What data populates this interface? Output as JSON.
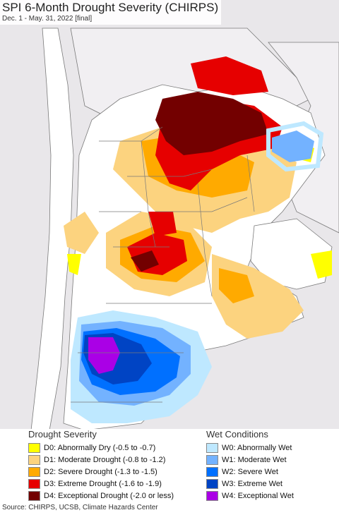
{
  "header": {
    "title": "SPI 6-Month Drought Severity (CHIRPS)",
    "subtitle": "Dec. 1 - May. 31, 2022 [final]"
  },
  "legend": {
    "drought": {
      "heading": "Drought Severity",
      "items": [
        {
          "label": "D0: Abnormally Dry (-0.5 to -0.7)",
          "color": "#ffff00"
        },
        {
          "label": "D1: Moderate Drought (-0.8 to -1.2)",
          "color": "#fcd37f"
        },
        {
          "label": "D2: Severe Drought (-1.3 to -1.5)",
          "color": "#ffaa00"
        },
        {
          "label": "D3: Extreme Drought (-1.6 to -1.9)",
          "color": "#e60000"
        },
        {
          "label": "D4: Exceptional Drought (-2.0 or less)",
          "color": "#730000"
        }
      ]
    },
    "wet": {
      "heading": "Wet Conditions",
      "items": [
        {
          "label": "W0: Abnormally Wet",
          "color": "#bee8ff"
        },
        {
          "label": "W1: Moderate Wet",
          "color": "#73b2ff"
        },
        {
          "label": "W2: Severe Wet",
          "color": "#0070ff"
        },
        {
          "label": "W3: Extreme Wet",
          "color": "#0044c4"
        },
        {
          "label": "W4: Exceptional Wet",
          "color": "#aa00e6"
        }
      ]
    }
  },
  "footer": {
    "source": "Source: CHIRPS, UCSB, Climate Hazards Center"
  },
  "map": {
    "ocean_color": "#e9e7ea",
    "land_color": "#ffffff",
    "border_color": "#7a7a7a"
  }
}
